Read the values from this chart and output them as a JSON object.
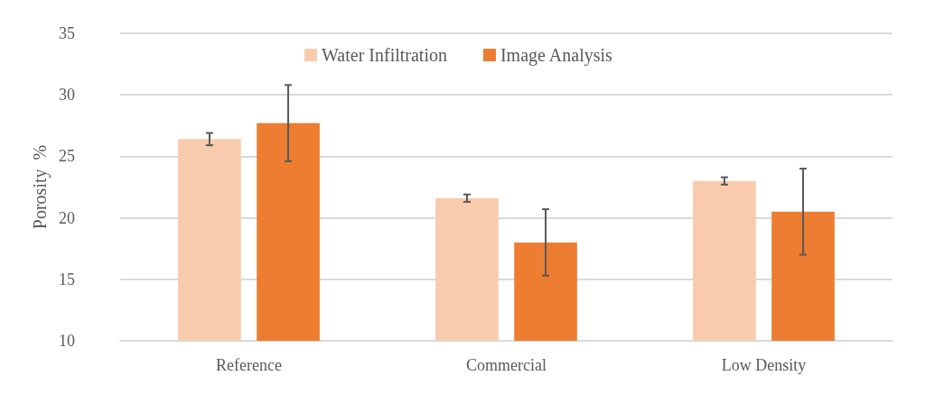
{
  "chart_data": {
    "type": "bar",
    "ylabel": "Porosity  %",
    "categories": [
      "Reference",
      "Commercial",
      "Low Density"
    ],
    "series": [
      {
        "name": "Water Infiltration",
        "color": "#f8cbad",
        "values": [
          26.4,
          21.6,
          23.0
        ],
        "errors": [
          0.5,
          0.3,
          0.3
        ]
      },
      {
        "name": "Image Analysis",
        "color": "#ed7d31",
        "values": [
          27.7,
          18.0,
          20.5
        ],
        "errors": [
          3.1,
          2.7,
          3.5
        ]
      }
    ],
    "ylim": [
      10,
      35
    ],
    "yticks": [
      10,
      15,
      20,
      25,
      30,
      35
    ],
    "grid": "y",
    "legend": "top"
  }
}
